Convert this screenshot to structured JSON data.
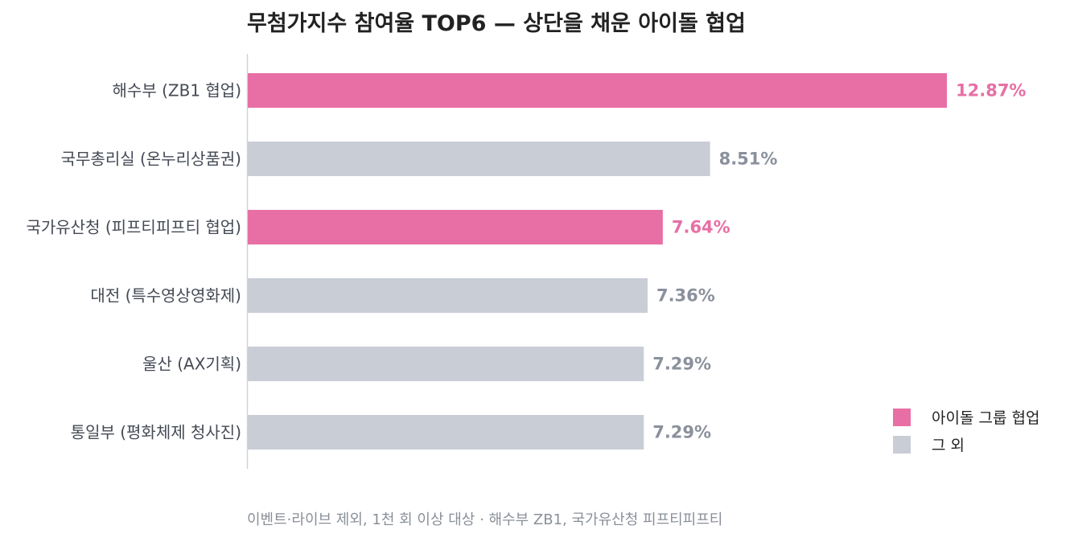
{
  "chart_data": {
    "type": "bar",
    "orientation": "horizontal",
    "title": "무첨가지수 참여율 TOP6 — 상단을 채운 아이돌 협업",
    "categories": [
      "해수부 (ZB1 협업)",
      "국무총리실 (온누리상품권)",
      "국가유산청 (피프티피프티 협업)",
      "대전 (특수영상영화제)",
      "울산 (AX기획)",
      "통일부 (평화체제 청사진)"
    ],
    "values": [
      12.87,
      8.51,
      7.64,
      7.36,
      7.29,
      7.29
    ],
    "value_labels": [
      "12.87%",
      "8.51%",
      "7.64%",
      "7.36%",
      "7.29%",
      "7.29%"
    ],
    "groups": [
      "idol",
      "other",
      "idol",
      "other",
      "other",
      "other"
    ],
    "xlim": [
      0,
      13.8
    ],
    "grid": false,
    "legend": {
      "placement": "bottom-right",
      "entries": [
        {
          "key": "idol",
          "label": "아이돌 그룹 협업",
          "color": "#e86fa5"
        },
        {
          "key": "other",
          "label": "그 외",
          "color": "#c9cdd6"
        }
      ]
    },
    "colors": {
      "idol": "#e86fa5",
      "other": "#c9cdd6",
      "idol_text": "#e86fa5",
      "other_text": "#8a909c"
    },
    "footnote": "이벤트·라이브 제외, 1천 회 이상 대상 · 해수부 ZB1, 국가유산청 피프티피프티"
  }
}
